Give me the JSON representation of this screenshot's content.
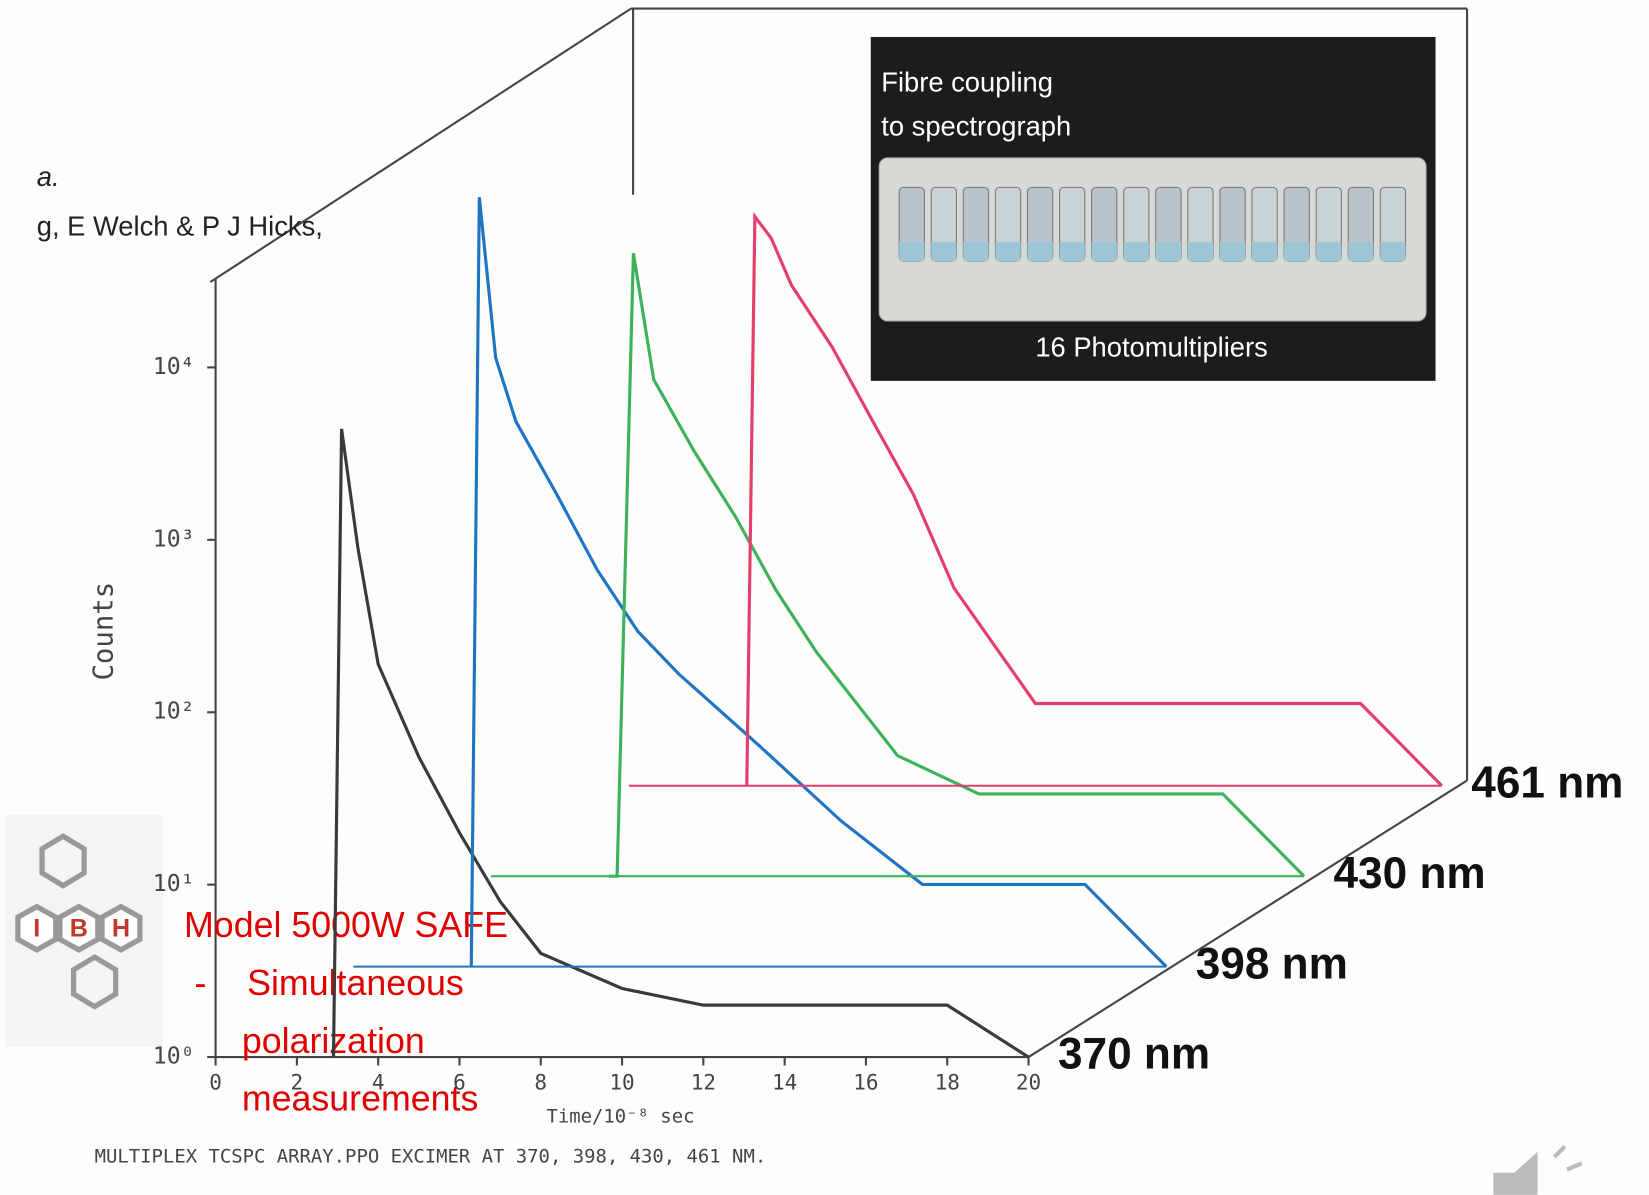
{
  "chart_data": {
    "type": "line",
    "x_label": "Time/10⁻⁸ sec",
    "y_label": "Counts",
    "caption": "MULTIPLEX TCSPC ARRAY.PPO EXCIMER AT 370, 398, 430, 461 NM.",
    "x": [
      2.9,
      3.1,
      3.5,
      4,
      5,
      6,
      7,
      8,
      10,
      12,
      14,
      16,
      18,
      20
    ],
    "series": [
      {
        "name": "370 nm",
        "color": "#3a3a3a",
        "values": [
          1,
          4400,
          900,
          190,
          55,
          20,
          8,
          4,
          2.5,
          2,
          2,
          2,
          2,
          1
        ]
      },
      {
        "name": "398 nm",
        "color": "#1f74c6",
        "values": [
          1,
          29000,
          3400,
          1450,
          550,
          200,
          88,
          50,
          19,
          7,
          3,
          3,
          3,
          1
        ]
      },
      {
        "name": "430 nm",
        "color": "#3db25a",
        "values": [
          1,
          1,
          4100,
          760,
          290,
          123,
          46,
          20,
          5,
          3,
          3,
          3,
          3,
          1
        ]
      },
      {
        "name": "461 nm",
        "color": "#e23f6c",
        "values": [
          1,
          2000,
          1500,
          800,
          350,
          130,
          49,
          14,
          3,
          3,
          3,
          3,
          3,
          1
        ]
      }
    ],
    "xlim": [
      0,
      20
    ],
    "xticks": [
      0,
      2,
      4,
      6,
      8,
      10,
      12,
      14,
      16,
      18,
      20
    ],
    "ylim": [
      1,
      30000
    ],
    "ylog": true,
    "yticks": [
      {
        "value": 1,
        "label": "10⁰"
      },
      {
        "value": 10,
        "label": "10¹"
      },
      {
        "value": 100,
        "label": "10²"
      },
      {
        "value": 1000,
        "label": "10³"
      },
      {
        "value": 10000,
        "label": "10⁴"
      }
    ]
  },
  "slide": {
    "cut_text": [
      "a.",
      "g, E Welch & P J Hicks,"
    ],
    "photo": {
      "caption_top": [
        "Fibre coupling",
        "to spectrograph"
      ],
      "caption_bottom": "16 Photomultipliers"
    },
    "logo": {
      "letters": [
        "I",
        "B",
        "H"
      ]
    },
    "model": {
      "title": "Model 5000W SAFE",
      "bullet_lines": [
        "Simultaneous",
        "polarization",
        "measurements"
      ]
    }
  }
}
